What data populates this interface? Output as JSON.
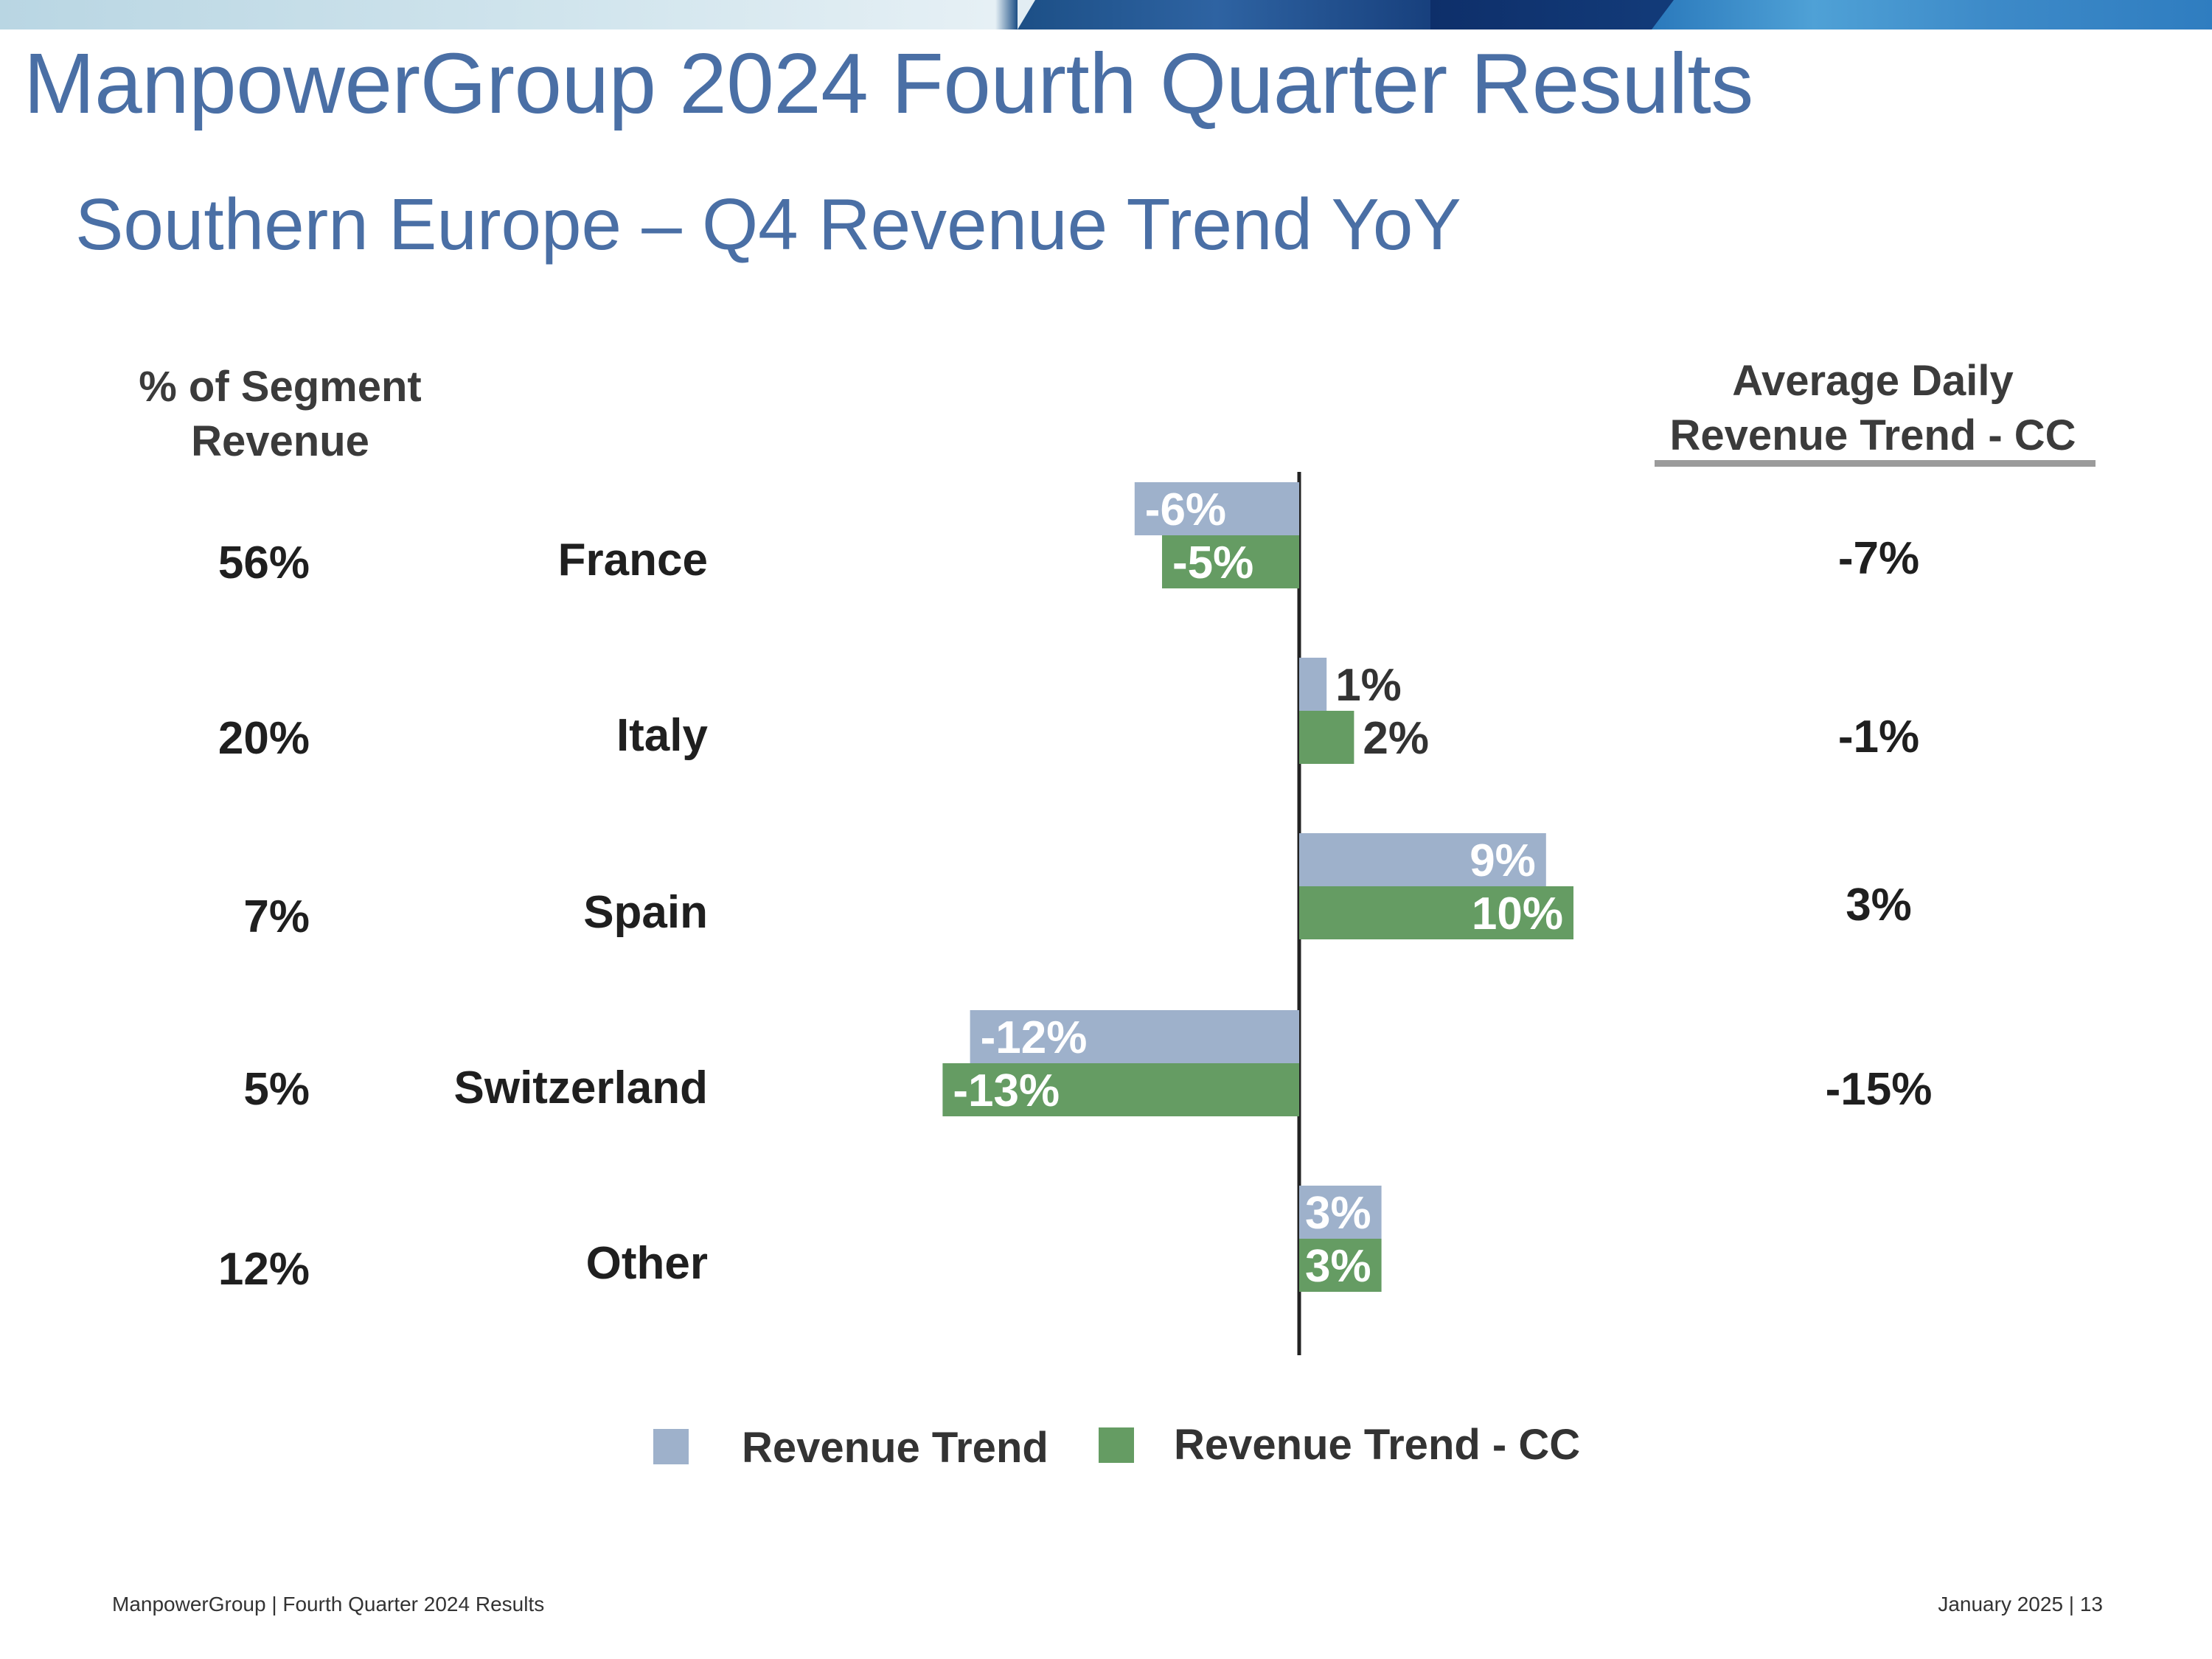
{
  "header": {
    "title": "ManpowerGroup 2024 Fourth Quarter Results",
    "subtitle": "Southern Europe – Q4 Revenue Trend YoY"
  },
  "columns": {
    "left_heading_line1": "% of Segment",
    "left_heading_line2": "Revenue",
    "right_heading_line1": "Average Daily",
    "right_heading_line2": "Revenue Trend - CC"
  },
  "rows": [
    {
      "country": "France",
      "segment_share": "56%",
      "avg_daily_cc": "-7%"
    },
    {
      "country": "Italy",
      "segment_share": "20%",
      "avg_daily_cc": "-1%"
    },
    {
      "country": "Spain",
      "segment_share": "7%",
      "avg_daily_cc": "3%"
    },
    {
      "country": "Switzerland",
      "segment_share": "5%",
      "avg_daily_cc": "-15%"
    },
    {
      "country": "Other",
      "segment_share": "12%",
      "avg_daily_cc": ""
    }
  ],
  "chart_data": {
    "type": "bar",
    "orientation": "horizontal",
    "categories": [
      "France",
      "Italy",
      "Spain",
      "Switzerland",
      "Other"
    ],
    "series": [
      {
        "name": "Revenue Trend",
        "color": "#9eb1cb",
        "values": [
          -6,
          1,
          9,
          -12,
          3
        ],
        "labels": [
          "-6%",
          "1%",
          "9%",
          "-12%",
          "3%"
        ]
      },
      {
        "name": "Revenue Trend - CC",
        "color": "#659c63",
        "values": [
          -5,
          2,
          10,
          -13,
          3
        ],
        "labels": [
          "-5%",
          "2%",
          "10%",
          "-13%",
          "3%"
        ]
      }
    ],
    "title": "",
    "xlabel": "",
    "ylabel": "",
    "xlim": [
      -13,
      10
    ]
  },
  "legend": {
    "items": [
      {
        "label": "Revenue Trend",
        "color": "#9eb1cb"
      },
      {
        "label": "Revenue Trend - CC",
        "color": "#659c63"
      }
    ]
  },
  "footer": {
    "left": "ManpowerGroup  |  Fourth Quarter 2024 Results",
    "right": "January 2025   |   13"
  }
}
